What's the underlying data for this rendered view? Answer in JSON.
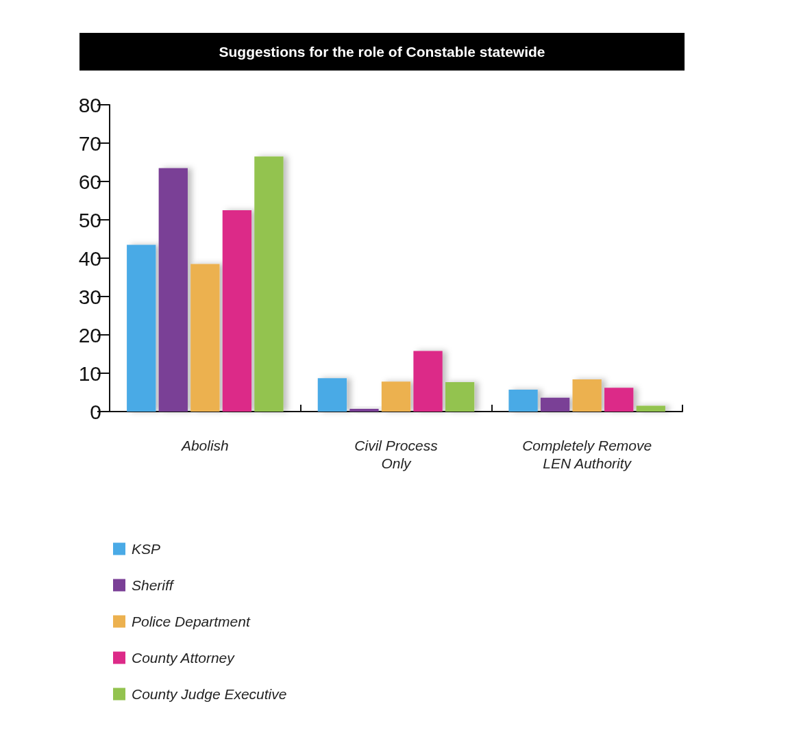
{
  "chart_data": {
    "type": "bar",
    "title": "Suggestions for the role of Constable statewide",
    "categories": [
      "Abolish",
      "Civil Process\nOnly",
      "Completely Remove\nLEN Authority"
    ],
    "series": [
      {
        "name": "KSP",
        "color": "#4aaae6",
        "values": [
          43.5,
          8.7,
          5.7
        ]
      },
      {
        "name": "Sheriff",
        "color": "#7a3f96",
        "values": [
          63.5,
          0.7,
          3.6
        ]
      },
      {
        "name": "Police Department",
        "color": "#ecb14f",
        "values": [
          38.5,
          7.8,
          8.4
        ]
      },
      {
        "name": "County Attorney",
        "color": "#dc2a88",
        "values": [
          52.5,
          15.8,
          6.2
        ]
      },
      {
        "name": "County Judge Executive",
        "color": "#93c34f",
        "values": [
          66.5,
          7.7,
          1.5
        ]
      }
    ],
    "ylim": [
      0,
      80
    ],
    "yticks": [
      0,
      10,
      20,
      30,
      40,
      50,
      60,
      70,
      80
    ],
    "grid": false,
    "legend": "bottom left"
  }
}
